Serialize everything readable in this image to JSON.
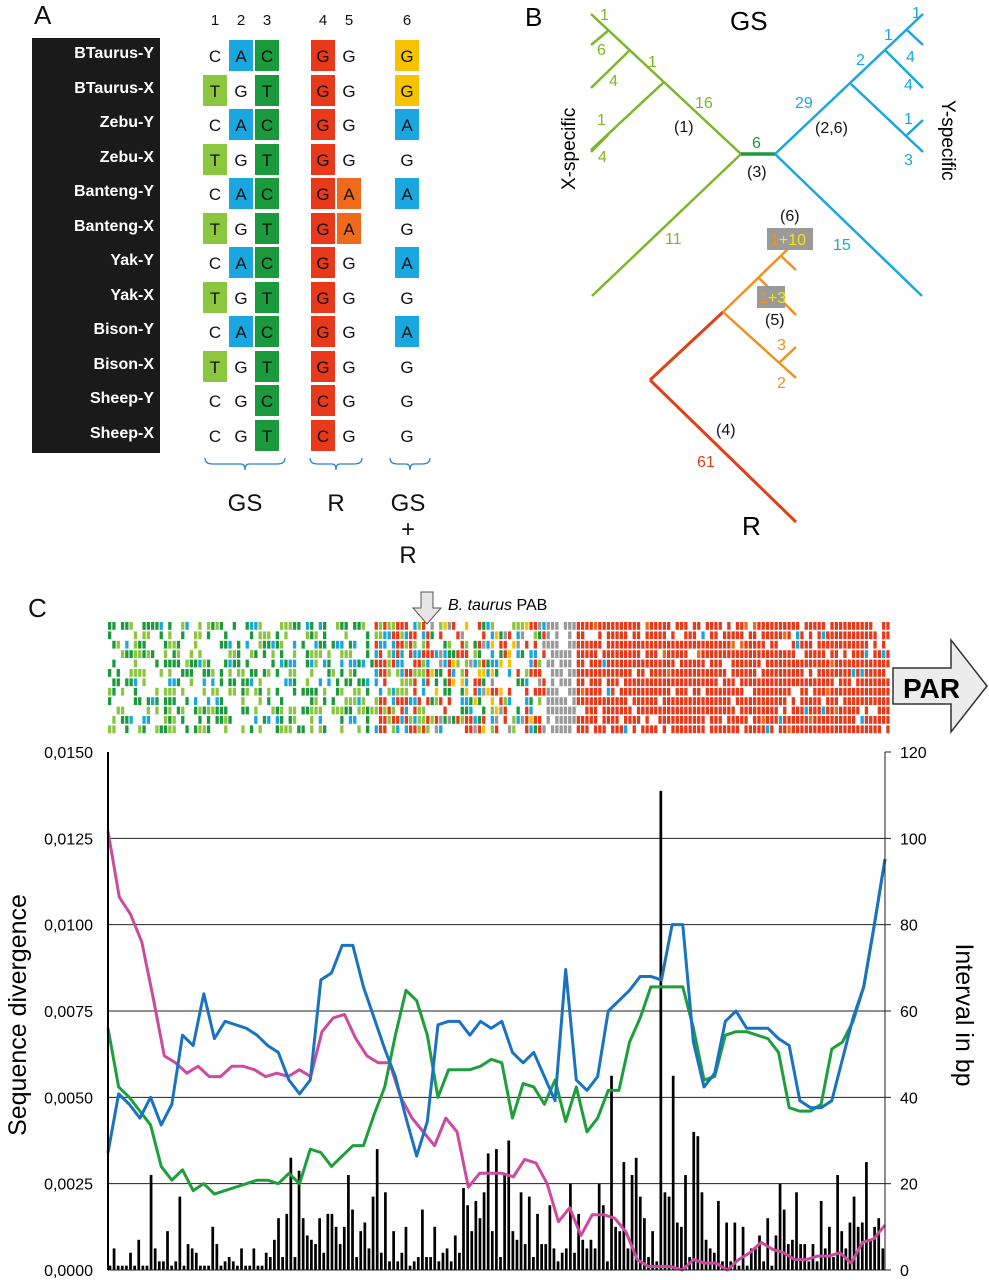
{
  "panels": {
    "a": "A",
    "b": "B",
    "c": "C"
  },
  "panel_a": {
    "column_numbers": [
      "1",
      "2",
      "3",
      "4",
      "5",
      "6"
    ],
    "rows": [
      {
        "name": "BTaurus-Y",
        "bases": [
          "C",
          "A",
          "C",
          "G",
          "G",
          "G"
        ],
        "colors": [
          "",
          "#1aa7e0",
          "#1a9a3c",
          "#e8391a",
          "",
          "#f7c300"
        ]
      },
      {
        "name": "BTaurus-X",
        "bases": [
          "T",
          "G",
          "T",
          "G",
          "G",
          "G"
        ],
        "colors": [
          "#8cc63f",
          "",
          "#1a9a3c",
          "#e8391a",
          "",
          "#f7c300"
        ]
      },
      {
        "name": "Zebu-Y",
        "bases": [
          "C",
          "A",
          "C",
          "G",
          "G",
          "A"
        ],
        "colors": [
          "",
          "#1aa7e0",
          "#1a9a3c",
          "#e8391a",
          "",
          "#1aa7e0"
        ]
      },
      {
        "name": "Zebu-X",
        "bases": [
          "T",
          "G",
          "T",
          "G",
          "G",
          "G"
        ],
        "colors": [
          "#8cc63f",
          "",
          "#1a9a3c",
          "#e8391a",
          "",
          ""
        ]
      },
      {
        "name": "Banteng-Y",
        "bases": [
          "C",
          "A",
          "C",
          "G",
          "A",
          "A"
        ],
        "colors": [
          "",
          "#1aa7e0",
          "#1a9a3c",
          "#e8391a",
          "#f06a1c",
          "#1aa7e0"
        ]
      },
      {
        "name": "Banteng-X",
        "bases": [
          "T",
          "G",
          "T",
          "G",
          "A",
          "G"
        ],
        "colors": [
          "#8cc63f",
          "",
          "#1a9a3c",
          "#e8391a",
          "#f06a1c",
          ""
        ]
      },
      {
        "name": "Yak-Y",
        "bases": [
          "C",
          "A",
          "C",
          "G",
          "G",
          "A"
        ],
        "colors": [
          "",
          "#1aa7e0",
          "#1a9a3c",
          "#e8391a",
          "",
          "#1aa7e0"
        ]
      },
      {
        "name": "Yak-X",
        "bases": [
          "T",
          "G",
          "T",
          "G",
          "G",
          "G"
        ],
        "colors": [
          "#8cc63f",
          "",
          "#1a9a3c",
          "#e8391a",
          "",
          ""
        ]
      },
      {
        "name": "Bison-Y",
        "bases": [
          "C",
          "A",
          "C",
          "G",
          "G",
          "A"
        ],
        "colors": [
          "",
          "#1aa7e0",
          "#1a9a3c",
          "#e8391a",
          "",
          "#1aa7e0"
        ]
      },
      {
        "name": "Bison-X",
        "bases": [
          "T",
          "G",
          "T",
          "G",
          "G",
          "G"
        ],
        "colors": [
          "#8cc63f",
          "",
          "#1a9a3c",
          "#e8391a",
          "",
          ""
        ]
      },
      {
        "name": "Sheep-Y",
        "bases": [
          "C",
          "G",
          "C",
          "C",
          "G",
          "G"
        ],
        "colors": [
          "",
          "",
          "#1a9a3c",
          "#e8391a",
          "",
          ""
        ]
      },
      {
        "name": "Sheep-X",
        "bases": [
          "C",
          "G",
          "T",
          "C",
          "G",
          "G"
        ],
        "colors": [
          "",
          "",
          "#1a9a3c",
          "#e8391a",
          "",
          ""
        ]
      }
    ],
    "group_labels": {
      "gs": "GS",
      "r": "R",
      "gsr_1": "GS",
      "gsr_2": "+",
      "gsr_3": "R"
    }
  },
  "panel_b": {
    "title_gs": "GS",
    "title_r": "R",
    "x_specific": "X-specific",
    "y_specific": "Y-specific",
    "x_branch_labels": [
      "1",
      "6",
      "1",
      "4",
      "16",
      "1",
      "4",
      "11"
    ],
    "y_branch_labels": [
      "1",
      "1",
      "4",
      "2",
      "4",
      "29",
      "1",
      "3",
      "15"
    ],
    "center_label": "6",
    "r_labels": [
      "3",
      "2",
      "61"
    ],
    "boxed_labels": [
      {
        "a": "1",
        "b": "+10"
      },
      {
        "a": "1",
        "b": "+3"
      }
    ],
    "site_labels": [
      "(1)",
      "(2,6)",
      "(3)",
      "(6)",
      "(5)",
      "(4)"
    ]
  },
  "chart_data": {
    "type": "line",
    "title": "",
    "annotation": {
      "italic": "B. taurus",
      "text": " PAB"
    },
    "par_label": "PAR",
    "ylabel": "Sequence divergence",
    "y2label": "Interval in bp",
    "ylim": [
      0,
      0.015
    ],
    "y2lim": [
      0,
      120
    ],
    "yticks": [
      "0,0000",
      "0,0025",
      "0,0050",
      "0,0075",
      "0,0100",
      "0,0125",
      "0,0150"
    ],
    "y2ticks": [
      "0",
      "20",
      "40",
      "60",
      "80",
      "100",
      "120"
    ],
    "grid": true,
    "series": [
      {
        "name": "pink",
        "color": "#cc4aa0",
        "values": [
          0.0127,
          0.0108,
          0.0103,
          0.0095,
          0.0079,
          0.0062,
          0.006,
          0.0057,
          0.0059,
          0.0056,
          0.0056,
          0.0059,
          0.0059,
          0.0058,
          0.0056,
          0.0057,
          0.0056,
          0.0058,
          0.0056,
          0.0069,
          0.0073,
          0.0074,
          0.0067,
          0.0062,
          0.006,
          0.006,
          0.005,
          0.0044,
          0.004,
          0.0036,
          0.0044,
          0.004,
          0.0024,
          0.0028,
          0.0028,
          0.0028,
          0.0027,
          0.0032,
          0.0031,
          0.0025,
          0.0014,
          0.0018,
          0.001,
          0.0016,
          0.0016,
          0.0015,
          0.0011,
          0.0003,
          0.0001,
          0.0001,
          0.0001,
          0.0,
          0.0003,
          0.0002,
          0.0002,
          0.0,
          0.0003,
          0.0005,
          0.0008,
          0.0006,
          0.0005,
          0.0003,
          0.0003,
          0.0004,
          0.0004,
          0.0005,
          0.0002,
          0.0008,
          0.0009,
          0.0013
        ]
      },
      {
        "name": "green",
        "color": "#1f9e3c",
        "values": [
          0.007,
          0.0053,
          0.005,
          0.0046,
          0.0042,
          0.003,
          0.0026,
          0.0029,
          0.0023,
          0.0025,
          0.0022,
          0.0023,
          0.0024,
          0.0025,
          0.0026,
          0.0026,
          0.0025,
          0.0028,
          0.0025,
          0.0035,
          0.0034,
          0.003,
          0.0033,
          0.0036,
          0.0036,
          0.0045,
          0.0053,
          0.0068,
          0.0081,
          0.0078,
          0.0068,
          0.005,
          0.0058,
          0.0058,
          0.0058,
          0.0059,
          0.0061,
          0.006,
          0.0044,
          0.0054,
          0.0053,
          0.0048,
          0.0055,
          0.0043,
          0.0053,
          0.004,
          0.0044,
          0.0052,
          0.0052,
          0.0066,
          0.0073,
          0.0082,
          0.0082,
          0.0082,
          0.0082,
          0.007,
          0.0055,
          0.0056,
          0.0068,
          0.0069,
          0.0069,
          0.0068,
          0.0067,
          0.0063,
          0.0047,
          0.0046,
          0.0046,
          0.0048,
          0.0064,
          0.0066,
          0.0072,
          0.0082,
          0.01,
          0.0119
        ]
      },
      {
        "name": "blue",
        "color": "#1a73c0",
        "values": [
          0.0034,
          0.0051,
          0.0048,
          0.0044,
          0.005,
          0.0042,
          0.0048,
          0.0068,
          0.0065,
          0.008,
          0.0067,
          0.0072,
          0.0071,
          0.007,
          0.0068,
          0.0065,
          0.0063,
          0.0055,
          0.0051,
          0.0055,
          0.0084,
          0.0086,
          0.0094,
          0.0094,
          0.0082,
          0.0073,
          0.0064,
          0.0056,
          0.0044,
          0.0033,
          0.0043,
          0.0071,
          0.0072,
          0.0072,
          0.0068,
          0.0072,
          0.007,
          0.0072,
          0.0063,
          0.006,
          0.0063,
          0.0056,
          0.0049,
          0.0087,
          0.0055,
          0.0052,
          0.0056,
          0.0075,
          0.0078,
          0.0081,
          0.0085,
          0.0085,
          0.0084,
          0.01,
          0.01,
          0.0066,
          0.0053,
          0.0057,
          0.0072,
          0.0075,
          0.007,
          0.007,
          0.007,
          0.0067,
          0.0065,
          0.0049,
          0.0047,
          0.0047,
          0.0049,
          0.0061,
          0.0073,
          0.0082,
          0.01,
          0.0119
        ]
      }
    ],
    "bars": {
      "name": "Interval in bp",
      "axis": "y2",
      "color": "#000000",
      "values": [
        1,
        5,
        1,
        1,
        1,
        4,
        1,
        7,
        1,
        1,
        22,
        5,
        2,
        2,
        9,
        1,
        2,
        17,
        1,
        6,
        5,
        4,
        1,
        1,
        1,
        10,
        6,
        1,
        2,
        3,
        2,
        1,
        5,
        1,
        1,
        5,
        1,
        1,
        4,
        3,
        7,
        12,
        3,
        13,
        26,
        3,
        23,
        12,
        8,
        7,
        6,
        12,
        4,
        13,
        13,
        10,
        6,
        10,
        22,
        14,
        3,
        9,
        11,
        5,
        17,
        28,
        4,
        18,
        2,
        9,
        2,
        4,
        10,
        1,
        2,
        3,
        14,
        3,
        3,
        10,
        2,
        4,
        5,
        2,
        8,
        4,
        19,
        15,
        9,
        16,
        12,
        18,
        27,
        9,
        28,
        3,
        22,
        30,
        9,
        7,
        18,
        6,
        17,
        3,
        13,
        6,
        6,
        15,
        5,
        2,
        4,
        5,
        20,
        4,
        13,
        7,
        5,
        7,
        5,
        20,
        15,
        2,
        45,
        10,
        9,
        25,
        5,
        22,
        26,
        17,
        12,
        3,
        9,
        2,
        111,
        18,
        17,
        45,
        11,
        10,
        22,
        3,
        32,
        31,
        18,
        7,
        5,
        4,
        16,
        2,
        11,
        2,
        11,
        1,
        10,
        1,
        5,
        5,
        8,
        2,
        12,
        1,
        8,
        20,
        14,
        6,
        7,
        18,
        6,
        6,
        2,
        6,
        2,
        16,
        5,
        10,
        3,
        22,
        9,
        5,
        11,
        17,
        10,
        11,
        25,
        7,
        10,
        12,
        5
      ]
    },
    "heatmap_rows": 12,
    "heatmap_colors": {
      "dark_green": "#1a9a3c",
      "light_green": "#8cc63f",
      "blue": "#1aa7e0",
      "red": "#e8391a",
      "orange": "#f06a1c",
      "yellow": "#f7c300",
      "grey": "#9a9a9a"
    }
  }
}
